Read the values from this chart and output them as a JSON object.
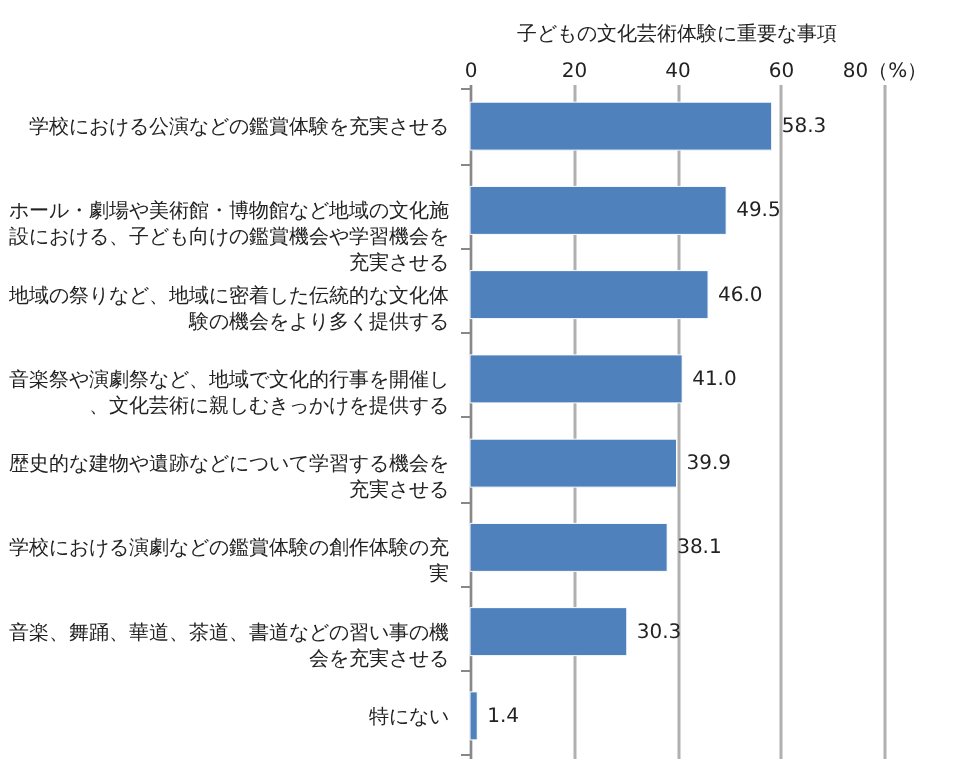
{
  "chart_data": {
    "type": "bar",
    "orientation": "horizontal",
    "title": "子どもの文化芸術体験に重要な事項",
    "categories": [
      "学校における公演などの鑑賞体験を充実させる",
      "ホール・劇場や美術館・博物館など地域の文化施設における、子ども向けの鑑賞機会や学習機会を充実させる",
      "地域の祭りなど、地域に密着した伝統的な文化体験の機会をより多く提供する",
      "音楽祭や演劇祭など、地域で文化的行事を開催し、文化芸術に親しむきっかけを提供する",
      "歴史的な建物や遺跡などについて学習する機会を充実させる",
      "学校における演劇などの鑑賞体験の創作体験の充実",
      "音楽、舞踊、華道、茶道、書道などの習い事の機会を充実させる",
      "特にない"
    ],
    "values": [
      58.3,
      49.5,
      46.0,
      41.0,
      39.9,
      38.1,
      30.3,
      1.4
    ],
    "value_labels": [
      "58.3",
      "49.5",
      "46.0",
      "41.0",
      "39.9",
      "38.1",
      "30.3",
      "1.4"
    ],
    "color": "#4f81bd",
    "xlim": [
      0,
      80
    ],
    "xticks": [
      0,
      20,
      40,
      60,
      {
        "value": 80,
        "label": "80（%）"
      }
    ],
    "grid": "x"
  }
}
